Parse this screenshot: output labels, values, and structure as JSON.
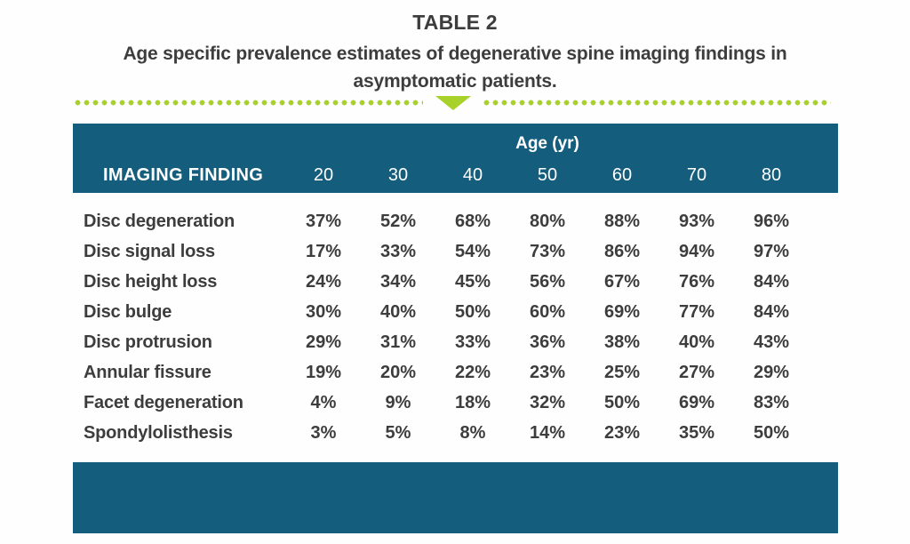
{
  "title": {
    "table_number": "TABLE 2",
    "subtitle_line1": "Age specific prevalence estimates of degenerative spine imaging findings in",
    "subtitle_line2": "asymptomatic patients."
  },
  "colors": {
    "teal": "#155d7d",
    "green": "#a8d22b",
    "text": "#3d3d3d"
  },
  "table": {
    "age_group_label": "Age (yr)",
    "header_label": "IMAGING FINDING",
    "ages": [
      "20",
      "30",
      "40",
      "50",
      "60",
      "70",
      "80"
    ],
    "rows": [
      {
        "label": "Disc degeneration",
        "values": [
          "37%",
          "52%",
          "68%",
          "80%",
          "88%",
          "93%",
          "96%"
        ]
      },
      {
        "label": "Disc signal loss",
        "values": [
          "17%",
          "33%",
          "54%",
          "73%",
          "86%",
          "94%",
          "97%"
        ]
      },
      {
        "label": "Disc height loss",
        "values": [
          "24%",
          "34%",
          "45%",
          "56%",
          "67%",
          "76%",
          "84%"
        ]
      },
      {
        "label": "Disc bulge",
        "values": [
          "30%",
          "40%",
          "50%",
          "60%",
          "69%",
          "77%",
          "84%"
        ]
      },
      {
        "label": "Disc protrusion",
        "values": [
          "29%",
          "31%",
          "33%",
          "36%",
          "38%",
          "40%",
          "43%"
        ]
      },
      {
        "label": "Annular fissure",
        "values": [
          "19%",
          "20%",
          "22%",
          "23%",
          "25%",
          "27%",
          "29%"
        ]
      },
      {
        "label": "Facet degeneration",
        "values": [
          "4%",
          "9%",
          "18%",
          "32%",
          "50%",
          "69%",
          "83%"
        ]
      },
      {
        "label": "Spondylolisthesis",
        "values": [
          "3%",
          "5%",
          "8%",
          "14%",
          "23%",
          "35%",
          "50%"
        ]
      }
    ]
  },
  "chart_data": {
    "type": "table",
    "title": "TABLE 2",
    "subtitle": "Age specific prevalence estimates of degenerative spine imaging findings in asymptomatic patients.",
    "column_group_label": "Age (yr)",
    "columns": [
      "IMAGING FINDING",
      "20",
      "30",
      "40",
      "50",
      "60",
      "70",
      "80"
    ],
    "unit": "%",
    "rows": [
      [
        "Disc degeneration",
        37,
        52,
        68,
        80,
        88,
        93,
        96
      ],
      [
        "Disc signal loss",
        17,
        33,
        54,
        73,
        86,
        94,
        97
      ],
      [
        "Disc height loss",
        24,
        34,
        45,
        56,
        67,
        76,
        84
      ],
      [
        "Disc bulge",
        30,
        40,
        50,
        60,
        69,
        77,
        84
      ],
      [
        "Disc protrusion",
        29,
        31,
        33,
        36,
        38,
        40,
        43
      ],
      [
        "Annular fissure",
        19,
        20,
        22,
        23,
        25,
        27,
        29
      ],
      [
        "Facet degeneration",
        4,
        9,
        18,
        32,
        50,
        69,
        83
      ],
      [
        "Spondylolisthesis",
        3,
        5,
        8,
        14,
        23,
        35,
        50
      ]
    ]
  }
}
